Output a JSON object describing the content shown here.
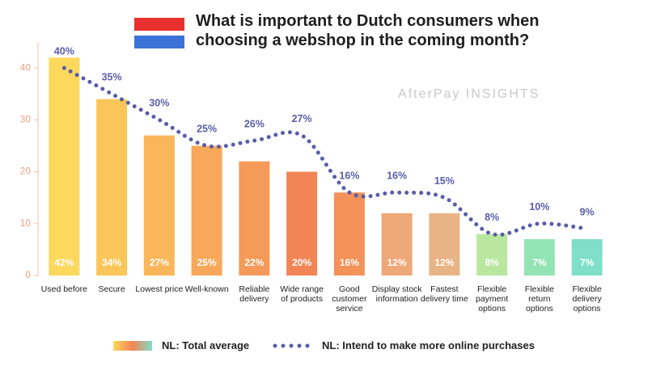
{
  "chart_data": {
    "type": "bar_line",
    "title": "What is important to Dutch consumers when choosing a webshop in the coming month?",
    "watermark": "AfterPay INSIGHTS",
    "categories": [
      "Used before",
      "Secure",
      "Lowest price",
      "Well-known",
      "Reliable delivery",
      "Wide range of products",
      "Good customer service",
      "Display stock information",
      "Fastest delivery time",
      "Flexible payment options",
      "Flexible return options",
      "Flexible delivery options"
    ],
    "series": [
      {
        "name": "NL: Total average",
        "type": "bar",
        "colors": [
          "#fcd85c",
          "#fac65a",
          "#f9b65b",
          "#f7a85a",
          "#f59a58",
          "#f28556",
          "#f39259",
          "#efa877",
          "#e9b485",
          "#b9e7a0",
          "#93e4b4",
          "#7fdfc8"
        ],
        "values": [
          42,
          34,
          27,
          25,
          22,
          20,
          16,
          12,
          12,
          8,
          7,
          7
        ],
        "value_labels": [
          "42%",
          "34%",
          "27%",
          "25%",
          "22%",
          "20%",
          "16%",
          "12%",
          "12%",
          "8%",
          "7%",
          "7%"
        ]
      },
      {
        "name": "NL: Intend to make more online purchases",
        "type": "line",
        "color": "#5a5ca8",
        "values": [
          40,
          35,
          30,
          25,
          26,
          27,
          16,
          16,
          15,
          8,
          10,
          9
        ],
        "value_labels": [
          "40%",
          "35%",
          "30%",
          "25%",
          "26%",
          "27%",
          "16%",
          "16%",
          "15%",
          "8%",
          "10%",
          "9%"
        ]
      }
    ],
    "ylim": [
      0,
      45
    ],
    "yticks": [
      0,
      10,
      20,
      30,
      40
    ],
    "grid": false
  }
}
